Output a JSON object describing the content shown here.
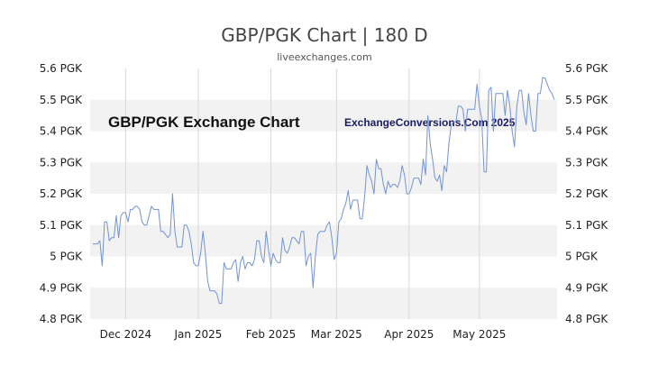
{
  "chart_data": {
    "type": "line",
    "title": "GBP/PGK Chart | 180 D",
    "subtitle": "liveexchanges.com",
    "watermark_left": "GBP/PGK Exchange Chart",
    "watermark_right": "ExchangeConversions.Com 2025",
    "ylim": [
      4.8,
      5.6
    ],
    "y_ticks": [
      {
        "value": 5.6,
        "label": "5.6 PGK"
      },
      {
        "value": 5.5,
        "label": "5.5 PGK"
      },
      {
        "value": 5.4,
        "label": "5.4 PGK"
      },
      {
        "value": 5.3,
        "label": "5.3 PGK"
      },
      {
        "value": 5.2,
        "label": "5.2 PGK"
      },
      {
        "value": 5.1,
        "label": "5.1 PGK"
      },
      {
        "value": 5.0,
        "label": "5 PGK"
      },
      {
        "value": 4.9,
        "label": "4.9 PGK"
      },
      {
        "value": 4.8,
        "label": "4.8 PGK"
      }
    ],
    "x_ticks": [
      {
        "index": 14,
        "label": "Dec 2024"
      },
      {
        "index": 45,
        "label": "Jan 2025"
      },
      {
        "index": 76,
        "label": "Feb 2025"
      },
      {
        "index": 104,
        "label": "Mar 2025"
      },
      {
        "index": 135,
        "label": "Apr 2025"
      },
      {
        "index": 165,
        "label": "May 2025"
      }
    ],
    "grid": true,
    "line_color": "#7394d1",
    "band_color": "#f2f2f2",
    "series": [
      {
        "values": [
          5.04,
          5.04,
          5.04,
          5.05,
          4.97,
          5.11,
          5.11,
          5.05,
          5.06,
          5.06,
          5.13,
          5.06,
          5.13,
          5.14,
          5.14,
          5.11,
          5.15,
          5.15,
          5.16,
          5.16,
          5.15,
          5.11,
          5.1,
          5.1,
          5.13,
          5.16,
          5.15,
          5.15,
          5.15,
          5.08,
          5.08,
          5.07,
          5.06,
          5.07,
          5.2,
          5.08,
          5.03,
          5.03,
          5.03,
          5.1,
          5.1,
          5.08,
          5.04,
          4.98,
          4.97,
          4.97,
          5.01,
          5.08,
          5.01,
          4.92,
          4.89,
          4.89,
          4.89,
          4.88,
          4.85,
          4.85,
          4.98,
          4.96,
          4.96,
          4.96,
          4.98,
          4.99,
          4.92,
          4.98,
          5.0,
          4.96,
          4.98,
          4.98,
          4.97,
          4.99,
          5.05,
          5.05,
          5.0,
          4.98,
          5.08,
          5.02,
          4.97,
          5.01,
          4.99,
          4.98,
          4.98,
          5.06,
          5.02,
          5.01,
          5.03,
          5.06,
          5.06,
          5.05,
          5.04,
          5.08,
          5.08,
          4.97,
          5.0,
          5.01,
          4.9,
          5.0,
          5.07,
          5.08,
          5.08,
          5.08,
          5.1,
          5.11,
          5.06,
          4.99,
          5.01,
          5.11,
          5.12,
          5.15,
          5.17,
          5.21,
          5.15,
          5.18,
          5.18,
          5.18,
          5.12,
          5.12,
          5.19,
          5.29,
          5.26,
          5.24,
          5.2,
          5.31,
          5.28,
          5.28,
          5.23,
          5.2,
          5.24,
          5.22,
          5.23,
          5.23,
          5.22,
          5.24,
          5.29,
          5.26,
          5.2,
          5.2,
          5.22,
          5.25,
          5.25,
          5.25,
          5.23,
          5.31,
          5.26,
          5.45,
          5.36,
          5.31,
          5.25,
          5.24,
          5.26,
          5.21,
          5.29,
          5.27,
          5.36,
          5.42,
          5.43,
          5.43,
          5.48,
          5.48,
          5.47,
          5.4,
          5.47,
          5.47,
          5.47,
          5.47,
          5.55,
          5.48,
          5.44,
          5.27,
          5.27,
          5.53,
          5.54,
          5.4,
          5.52,
          5.52,
          5.52,
          5.52,
          5.45,
          5.53,
          5.48,
          5.4,
          5.35,
          5.48,
          5.53,
          5.53,
          5.46,
          5.42,
          5.52,
          5.45,
          5.4,
          5.4,
          5.52,
          5.52,
          5.57,
          5.57,
          5.55,
          5.53,
          5.52,
          5.5
        ]
      }
    ]
  }
}
